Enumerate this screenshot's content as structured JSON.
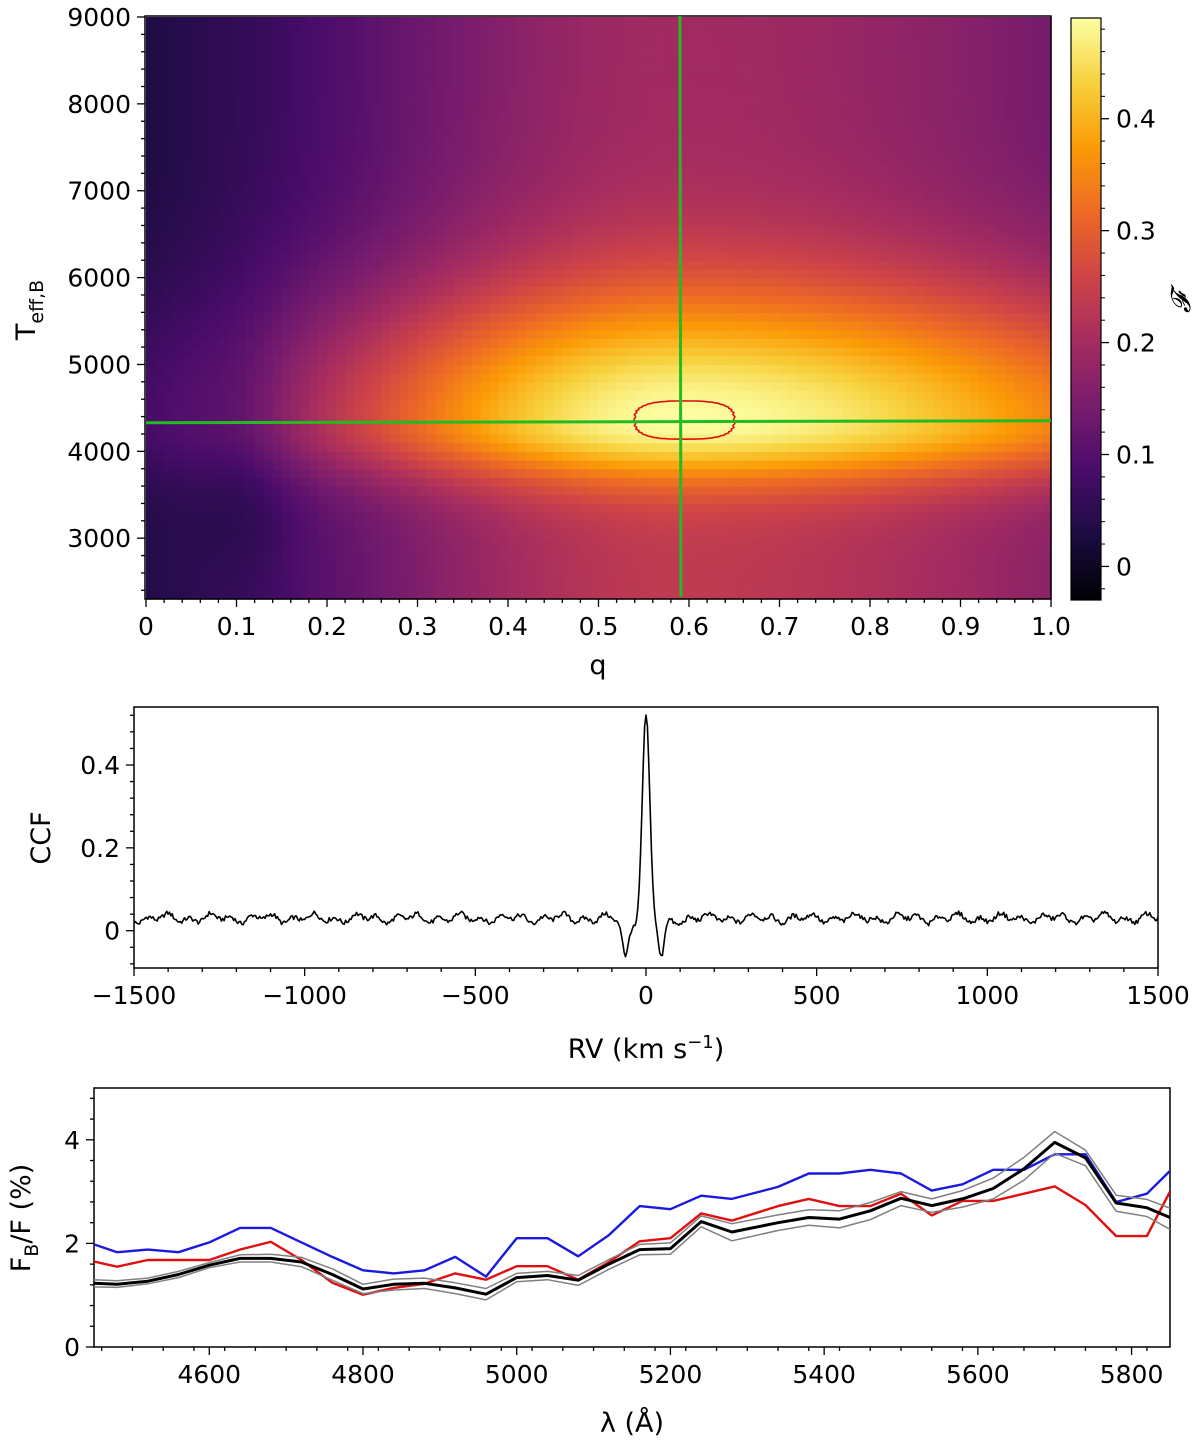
{
  "chart_data": [
    {
      "type": "heatmap",
      "title": "",
      "xlabel": "q",
      "ylabel_base": "T",
      "ylabel_sub": "eff,B",
      "colorbar_label": "𝓕",
      "xlim": [
        0,
        1.0
      ],
      "ylim": [
        2300,
        9000
      ],
      "clim": [
        -0.03,
        0.49
      ],
      "x_ticks": [
        0,
        0.1,
        0.2,
        0.3,
        0.4,
        0.5,
        0.6,
        0.7,
        0.8,
        0.9,
        1.0
      ],
      "x_tick_labels": [
        "0",
        "0.1",
        "0.2",
        "0.3",
        "0.4",
        "0.5",
        "0.6",
        "0.7",
        "0.8",
        "0.9",
        "1.0"
      ],
      "y_ticks": [
        3000,
        4000,
        5000,
        6000,
        7000,
        8000,
        9000
      ],
      "y_tick_labels": [
        "3000",
        "4000",
        "5000",
        "6000",
        "7000",
        "8000",
        "9000"
      ],
      "colorbar_ticks": [
        0,
        0.1,
        0.2,
        0.3,
        0.4
      ],
      "colorbar_tick_labels": [
        "0",
        "0.1",
        "0.2",
        "0.3",
        "0.4"
      ],
      "colormap": [
        "#000004",
        "#1b0c41",
        "#4a0c6b",
        "#781c6d",
        "#a52c60",
        "#cf4446",
        "#ed6925",
        "#fb9b06",
        "#f7d13d",
        "#fcffa4"
      ],
      "peak": {
        "q": 0.59,
        "teff": 4340,
        "value": 0.49
      },
      "crosshair": {
        "q": 0.59,
        "teff": 4340,
        "color": "#22bb22"
      },
      "confidence_contour": {
        "q_range": [
          0.54,
          0.65
        ],
        "teff_range": [
          4140,
          4580
        ],
        "color": "#dd1111"
      }
    },
    {
      "type": "line",
      "title": "",
      "xlabel": "RV (km s",
      "xlabel_sup": "−1",
      "xlabel_close": ")",
      "ylabel": "CCF",
      "xlim": [
        -1500,
        1500
      ],
      "ylim": [
        -0.09,
        0.54
      ],
      "x_ticks": [
        -1500,
        -1000,
        -500,
        0,
        500,
        1000,
        1500
      ],
      "x_tick_labels": [
        "−1500",
        "−1000",
        "−500",
        "0",
        "500",
        "1000",
        "1500"
      ],
      "y_ticks": [
        0,
        0.2,
        0.4
      ],
      "y_tick_labels": [
        "0",
        "0.2",
        "0.4"
      ],
      "peak": {
        "rv": 0,
        "ccf": 0.5
      },
      "baseline": 0.03,
      "dips": [
        {
          "rv": -60,
          "ccf": -0.055
        },
        {
          "rv": 45,
          "ccf": -0.055
        }
      ],
      "series_color": "#000000"
    },
    {
      "type": "line",
      "title": "",
      "xlabel": "λ (Å)",
      "ylabel_base": "F",
      "ylabel_sub": "B",
      "ylabel_rest": "/F (%)",
      "xlim": [
        4450,
        5850
      ],
      "ylim": [
        0,
        5
      ],
      "x_ticks": [
        4600,
        4800,
        5000,
        5200,
        5400,
        5600,
        5800
      ],
      "x_tick_labels": [
        "4600",
        "4800",
        "5000",
        "5200",
        "5400",
        "5600",
        "5800"
      ],
      "y_ticks": [
        0,
        2,
        4
      ],
      "y_tick_labels": [
        "0",
        "2",
        "4"
      ],
      "x": [
        4450,
        4480,
        4520,
        4560,
        4600,
        4640,
        4680,
        4720,
        4760,
        4800,
        4840,
        4880,
        4920,
        4960,
        5000,
        5040,
        5080,
        5120,
        5160,
        5200,
        5240,
        5280,
        5340,
        5380,
        5420,
        5460,
        5500,
        5540,
        5580,
        5620,
        5660,
        5700,
        5740,
        5780,
        5820,
        5850
      ],
      "series": [
        {
          "name": "blue",
          "color": "#1a1adf",
          "width": 2.4,
          "values": [
            1.98,
            1.83,
            1.88,
            1.83,
            2.02,
            2.3,
            2.3,
            2.02,
            1.74,
            1.48,
            1.42,
            1.48,
            1.74,
            1.36,
            2.1,
            2.1,
            1.75,
            2.16,
            2.72,
            2.66,
            2.92,
            2.86,
            3.09,
            3.35,
            3.35,
            3.42,
            3.35,
            3.02,
            3.14,
            3.42,
            3.42,
            3.72,
            3.72,
            2.8,
            2.96,
            3.4
          ]
        },
        {
          "name": "red",
          "color": "#e01010",
          "width": 2.4,
          "values": [
            1.65,
            1.55,
            1.68,
            1.68,
            1.68,
            1.88,
            2.03,
            1.68,
            1.24,
            1.01,
            1.14,
            1.22,
            1.42,
            1.3,
            1.56,
            1.56,
            1.3,
            1.64,
            2.04,
            2.1,
            2.58,
            2.44,
            2.72,
            2.86,
            2.72,
            2.72,
            2.96,
            2.54,
            2.82,
            2.82,
            2.96,
            3.1,
            2.74,
            2.14,
            2.14,
            3.0
          ]
        },
        {
          "name": "upper",
          "color": "#808080",
          "width": 1.5,
          "values": [
            1.3,
            1.28,
            1.33,
            1.46,
            1.63,
            1.78,
            1.79,
            1.73,
            1.51,
            1.21,
            1.31,
            1.33,
            1.24,
            1.13,
            1.42,
            1.46,
            1.38,
            1.69,
            1.98,
            2.01,
            2.53,
            2.38,
            2.55,
            2.65,
            2.63,
            2.79,
            3.0,
            2.86,
            3.02,
            3.26,
            3.66,
            4.16,
            3.8,
            2.93,
            2.85,
            2.68
          ]
        },
        {
          "name": "lower",
          "color": "#808080",
          "width": 1.5,
          "values": [
            1.16,
            1.15,
            1.22,
            1.34,
            1.53,
            1.64,
            1.64,
            1.55,
            1.29,
            1.03,
            1.1,
            1.13,
            1.03,
            0.91,
            1.26,
            1.3,
            1.19,
            1.5,
            1.78,
            1.79,
            2.32,
            2.05,
            2.25,
            2.35,
            2.3,
            2.46,
            2.73,
            2.6,
            2.7,
            2.86,
            3.22,
            3.74,
            3.5,
            2.62,
            2.52,
            2.27
          ]
        },
        {
          "name": "mean",
          "color": "#000000",
          "width": 3,
          "values": [
            1.23,
            1.21,
            1.27,
            1.4,
            1.58,
            1.71,
            1.71,
            1.64,
            1.4,
            1.12,
            1.21,
            1.23,
            1.14,
            1.02,
            1.34,
            1.38,
            1.29,
            1.6,
            1.88,
            1.9,
            2.42,
            2.22,
            2.4,
            2.5,
            2.47,
            2.63,
            2.87,
            2.73,
            2.86,
            3.06,
            3.44,
            3.95,
            3.65,
            2.78,
            2.69,
            2.5
          ]
        }
      ]
    }
  ]
}
